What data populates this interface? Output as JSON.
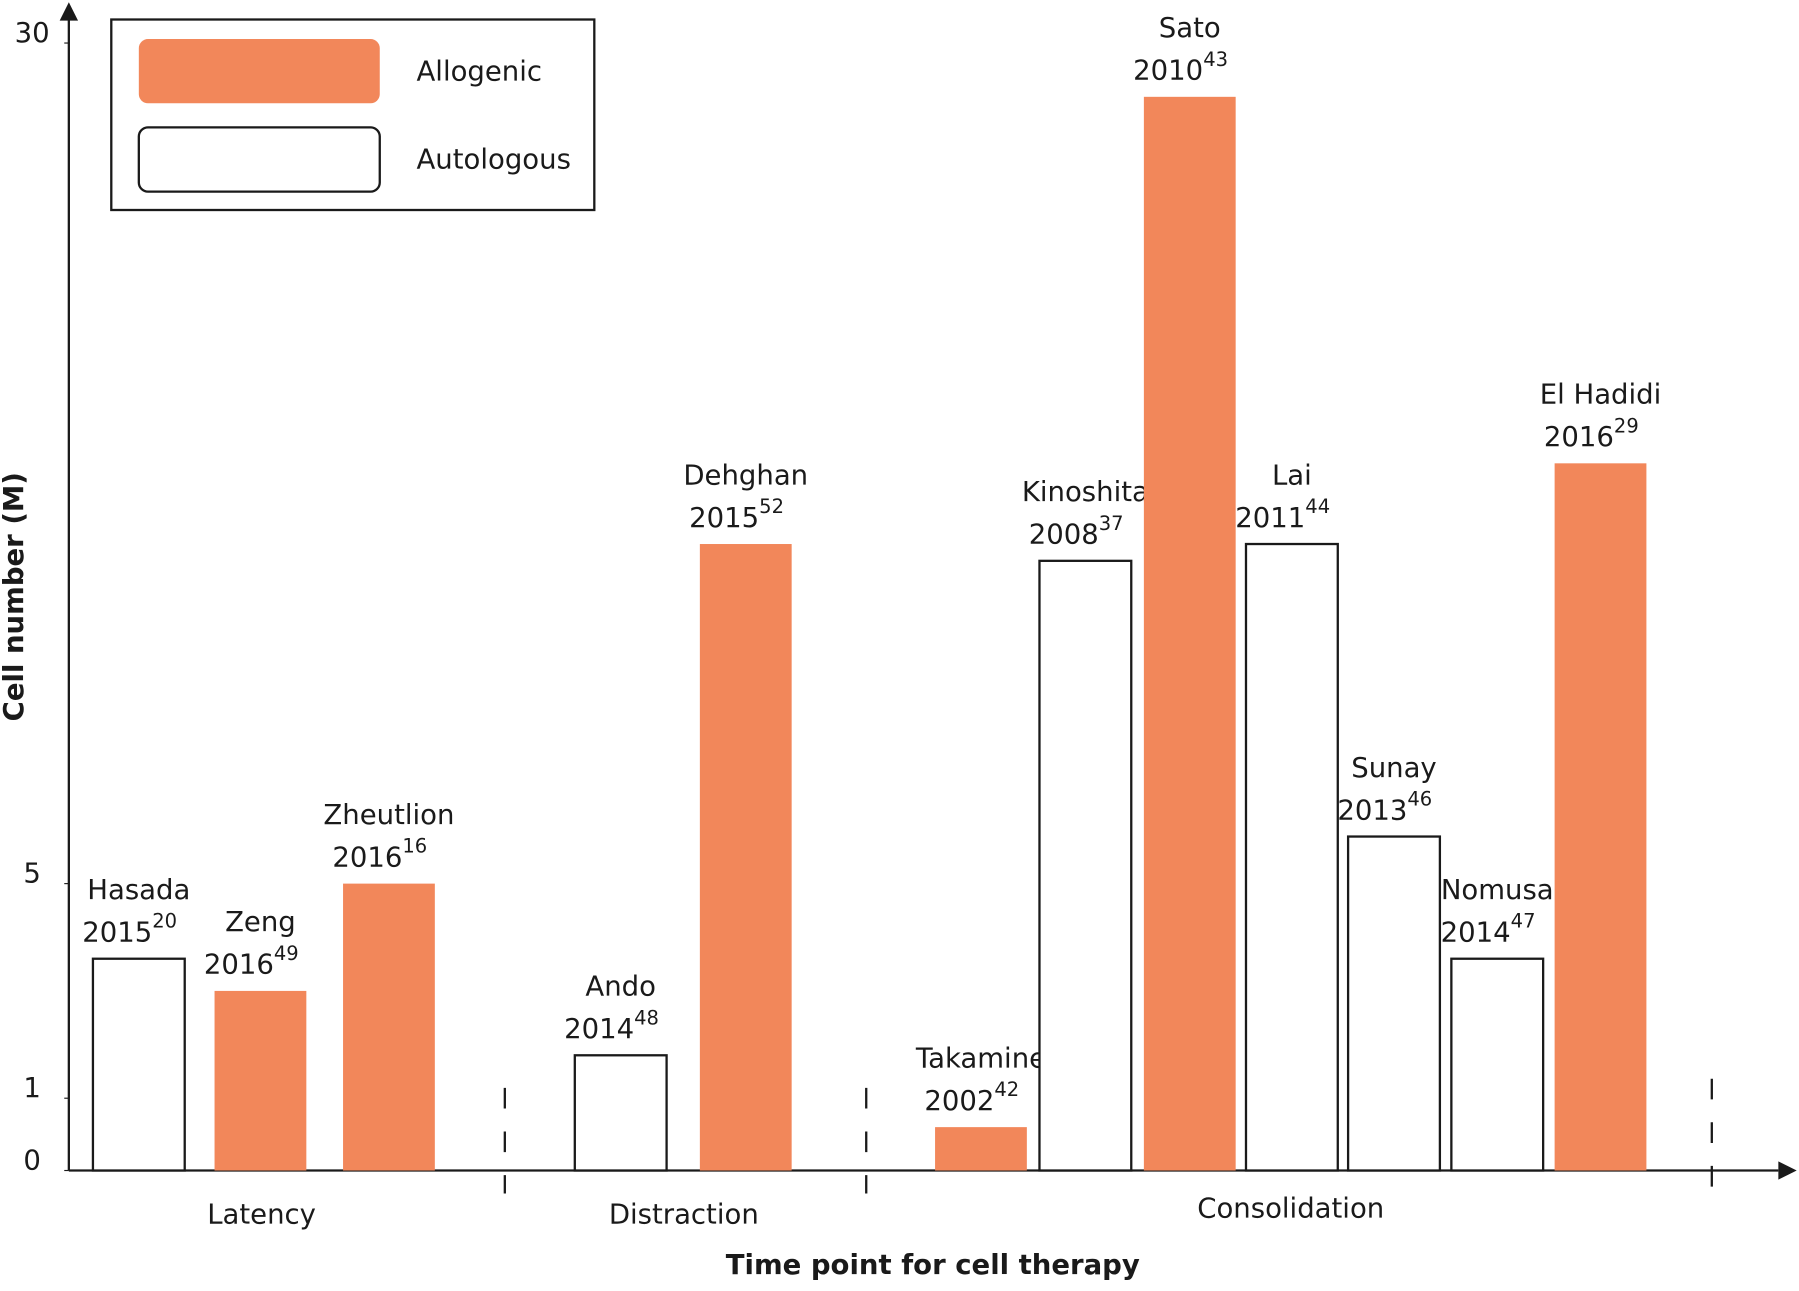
{
  "chart_data": {
    "type": "bar",
    "x_label": "Time point for cell therapy",
    "y_label": "Cell number (M)",
    "categories": [
      "Hasada",
      "Zeng",
      "Zheutlion",
      "Ando",
      "Dehghan",
      "Takamine",
      "Kinoshita",
      "Sato",
      "Lai",
      "Sunay",
      "Nomusa",
      "El Hadidi"
    ],
    "years": [
      "2015",
      "2016",
      "2016",
      "2014",
      "2015",
      "2002",
      "2008",
      "2010",
      "2011",
      "2013",
      "2014",
      "2016"
    ],
    "refs": [
      "20",
      "49",
      "16",
      "48",
      "52",
      "42",
      "37",
      "43",
      "44",
      "46",
      "47",
      "29"
    ],
    "series": [
      {
        "name": "Allogenic",
        "color": "#f2875a",
        "values": [
          null,
          3.0,
          5,
          null,
          15.1,
          0.6,
          null,
          28.4,
          null,
          null,
          null,
          17.5
        ]
      },
      {
        "name": "Autologous",
        "color": "#ffffff",
        "values": [
          3.6,
          null,
          null,
          1.8,
          null,
          null,
          14.6,
          null,
          15.1,
          6.4,
          3.6,
          null
        ]
      }
    ],
    "groups": [
      "Latency",
      "Distraction",
      "Consolidation"
    ],
    "ylim": [
      0,
      30
    ],
    "yticks": [
      0,
      1,
      5,
      30
    ]
  }
}
